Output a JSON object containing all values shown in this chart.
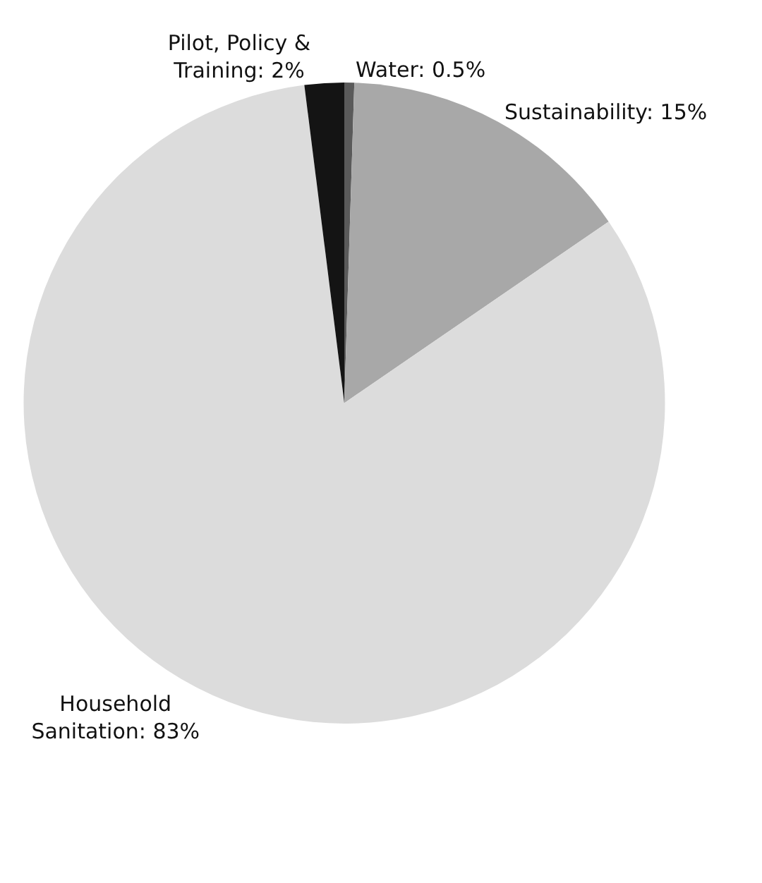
{
  "chart_data": {
    "type": "pie",
    "categories": [
      "Water",
      "Sustainability",
      "Household Sanitation",
      "Pilot, Policy & Training"
    ],
    "values": [
      0.5,
      15,
      83,
      2
    ],
    "value_labels": [
      "0.5%",
      "15%",
      "83%",
      "2%"
    ],
    "colors": [
      "#5a5a5a",
      "#a8a8a8",
      "#dcdcdc",
      "#141414"
    ]
  }
}
